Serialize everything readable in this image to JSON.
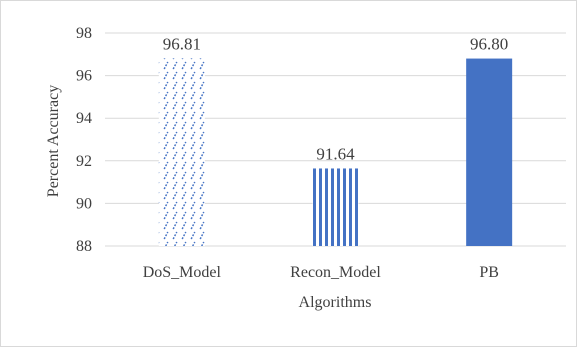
{
  "chart_data": {
    "type": "bar",
    "title": "",
    "xlabel": "Algorithms",
    "ylabel": "Percent Accuracy",
    "categories": [
      "DoS_Model",
      "Recon_Model",
      "PB"
    ],
    "values": [
      96.81,
      91.64,
      96.8
    ],
    "data_labels": [
      "96.81",
      "91.64",
      "96.80"
    ],
    "ylim": [
      88,
      98
    ],
    "yticks": [
      88,
      90,
      92,
      94,
      96,
      98
    ],
    "grid": true,
    "legend": "none",
    "bar_styles": [
      {
        "fill": "diagonal-dash-pattern",
        "color": "#4472c4"
      },
      {
        "fill": "vertical-stripe-pattern",
        "color": "#4472c4"
      },
      {
        "fill": "solid",
        "color": "#4472c4"
      }
    ],
    "grid_color": "#d9d9d9",
    "text_color": "#404040"
  }
}
